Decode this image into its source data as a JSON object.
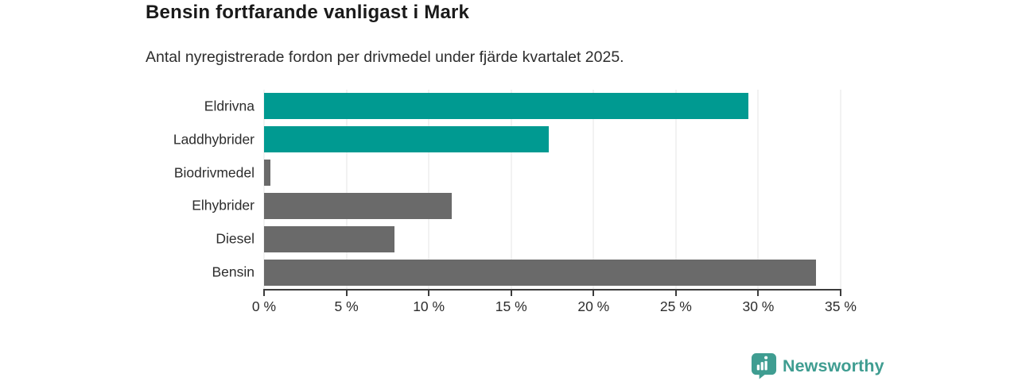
{
  "header": {
    "title": "Bensin fortfarande vanligast i Mark",
    "subtitle": "Antal nyregistrerade fordon per drivmedel under fjärde kvartalet 2025."
  },
  "chart_data": {
    "type": "bar",
    "orientation": "horizontal",
    "title": "Bensin fortfarande vanligast i Mark",
    "subtitle": "Antal nyregistrerade fordon per drivmedel under fjärde kvartalet 2025.",
    "xlabel": "",
    "ylabel": "",
    "categories": [
      "Eldrivna",
      "Laddhybrider",
      "Biodrivmedel",
      "Elhybrider",
      "Diesel",
      "Bensin"
    ],
    "values": [
      29.4,
      17.3,
      0.4,
      11.4,
      7.9,
      33.5
    ],
    "unit": "%",
    "xlim": [
      0,
      35
    ],
    "x_tick_values": [
      0,
      5,
      10,
      15,
      20,
      25,
      30,
      35
    ],
    "x_tick_labels": [
      "0 %",
      "5 %",
      "10 %",
      "15 %",
      "20 %",
      "25 %",
      "30 %",
      "35 %"
    ],
    "grid": true,
    "legend": false,
    "bar_colors": [
      "#009a91",
      "#009a91",
      "#6a6a6a",
      "#6a6a6a",
      "#6a6a6a",
      "#6a6a6a"
    ]
  },
  "colors": {
    "highlight_teal": "#009a91",
    "neutral_gray": "#6a6a6a",
    "gridline": "#e4e4e4",
    "axis": "#3c3c3c",
    "title_text": "#1a1a1a",
    "body_text": "#2d2d2d",
    "brand_teal": "#3f9d91"
  },
  "footer": {
    "brand": "Newsworthy",
    "logo_icon": "speech-bubble-bar-chart-icon"
  }
}
